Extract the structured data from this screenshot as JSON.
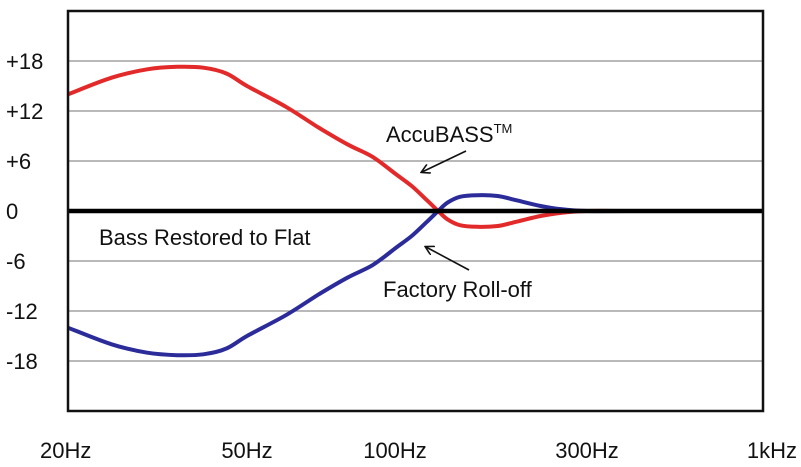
{
  "chart_data": {
    "type": "line",
    "title": "",
    "xlabel": "",
    "ylabel": "",
    "x_scale": "log",
    "x_tick_labels": [
      "20Hz",
      "50Hz",
      "100Hz",
      "300Hz",
      "1kHz"
    ],
    "x_tick_values": [
      20,
      50,
      100,
      300,
      1000
    ],
    "xlim": [
      20,
      1000
    ],
    "y_tick_labels": [
      "+18",
      "+12",
      "+6",
      "0",
      "-6",
      "-12",
      "-18"
    ],
    "y_tick_values": [
      18,
      12,
      6,
      0,
      -6,
      -12,
      -18
    ],
    "ylim": [
      -24,
      24
    ],
    "grid": "horizontal",
    "series": [
      {
        "color": "#e32a2a",
        "x": [
          20,
          25,
          30,
          35,
          40,
          45,
          50,
          60,
          70,
          80,
          90,
          100,
          110,
          120,
          128,
          135,
          145,
          160,
          180,
          200,
          230,
          260,
          300,
          400,
          1000
        ],
        "y": [
          14,
          16,
          17,
          17.3,
          17.2,
          16.5,
          15,
          12.5,
          10,
          8,
          6.5,
          4.5,
          3,
          1.3,
          0,
          -1,
          -1.7,
          -1.9,
          -1.8,
          -1.3,
          -0.6,
          -0.2,
          0,
          0,
          0
        ]
      },
      {
        "color": "#2b2c9a",
        "x": [
          20,
          25,
          30,
          35,
          40,
          45,
          50,
          60,
          70,
          80,
          90,
          100,
          110,
          120,
          128,
          135,
          145,
          160,
          180,
          200,
          230,
          260,
          300,
          400,
          1000
        ],
        "y": [
          -14,
          -16,
          -17,
          -17.3,
          -17.2,
          -16.5,
          -15,
          -12.5,
          -10,
          -8,
          -6.5,
          -4.5,
          -3,
          -1.3,
          0,
          1,
          1.7,
          1.9,
          1.8,
          1.3,
          0.6,
          0.2,
          0,
          0,
          0
        ]
      },
      {
        "color": "#000000",
        "x": [
          20,
          1000
        ],
        "y": [
          0,
          0
        ]
      }
    ],
    "annotations": [
      {
        "text": "AccuBASS",
        "superscript": "TM"
      },
      {
        "text": "Bass Restored to Flat"
      },
      {
        "text": "Factory Roll-off"
      }
    ]
  }
}
